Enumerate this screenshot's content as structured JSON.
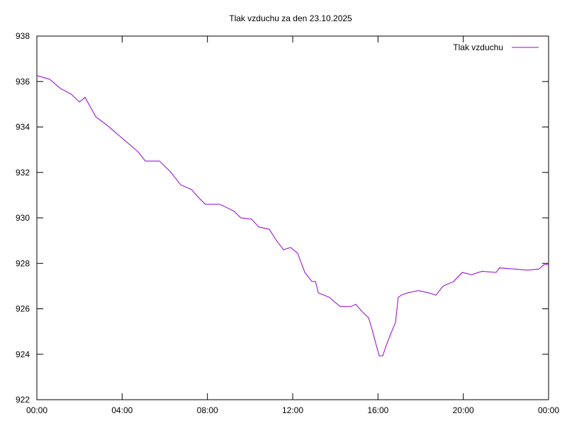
{
  "chart_data": {
    "type": "line",
    "title": "Tlak vzduchu za den 23.10.2025",
    "xlabel": "",
    "ylabel": "",
    "xlim": [
      0,
      24
    ],
    "ylim": [
      922,
      938
    ],
    "x_unit": "hours",
    "x_ticks": [
      0,
      4,
      8,
      12,
      16,
      20,
      24
    ],
    "x_tick_labels": [
      "00:00",
      "04:00",
      "08:00",
      "12:00",
      "16:00",
      "20:00",
      "00:00"
    ],
    "y_ticks": [
      922,
      924,
      926,
      928,
      930,
      932,
      934,
      936,
      938
    ],
    "y_tick_labels": [
      "922",
      "924",
      "926",
      "928",
      "930",
      "932",
      "934",
      "936",
      "938"
    ],
    "grid": false,
    "legend_position": "top-right",
    "series": [
      {
        "name": "Tlak vzduchu",
        "color": "#9400D3",
        "x": [
          0,
          0.6,
          1.1,
          1.6,
          2.0,
          2.26,
          2.5,
          2.76,
          3.26,
          3.76,
          4.26,
          4.75,
          5.09,
          5.75,
          6.25,
          6.75,
          7.25,
          7.58,
          7.9,
          8.58,
          9.24,
          9.57,
          10.07,
          10.4,
          10.9,
          11.24,
          11.57,
          11.9,
          12.23,
          12.57,
          12.9,
          13.07,
          13.2,
          13.73,
          13.9,
          14.23,
          14.73,
          14.96,
          15.23,
          15.56,
          15.72,
          15.89,
          16.06,
          16.22,
          16.39,
          16.62,
          16.82,
          16.95,
          17.09,
          17.39,
          17.89,
          18.38,
          18.72,
          19.05,
          19.55,
          19.95,
          20.38,
          20.88,
          21.54,
          21.7,
          22.37,
          23.04,
          23.54,
          23.8,
          24
        ],
        "y": [
          936.26,
          936.1,
          935.7,
          935.45,
          935.1,
          935.3,
          934.9,
          934.45,
          934.1,
          933.7,
          933.3,
          932.9,
          932.5,
          932.5,
          932.05,
          931.45,
          931.25,
          930.9,
          930.6,
          930.6,
          930.3,
          930.0,
          929.95,
          929.6,
          929.5,
          929.0,
          928.6,
          928.7,
          928.45,
          927.6,
          927.2,
          927.2,
          926.7,
          926.5,
          926.35,
          926.1,
          926.1,
          926.2,
          925.9,
          925.6,
          925.1,
          924.5,
          923.93,
          923.93,
          924.4,
          924.95,
          925.4,
          926.5,
          926.6,
          926.7,
          926.8,
          926.7,
          926.6,
          927.0,
          927.2,
          927.6,
          927.5,
          927.65,
          927.6,
          927.8,
          927.75,
          927.7,
          927.75,
          927.95,
          927.95
        ]
      }
    ]
  }
}
